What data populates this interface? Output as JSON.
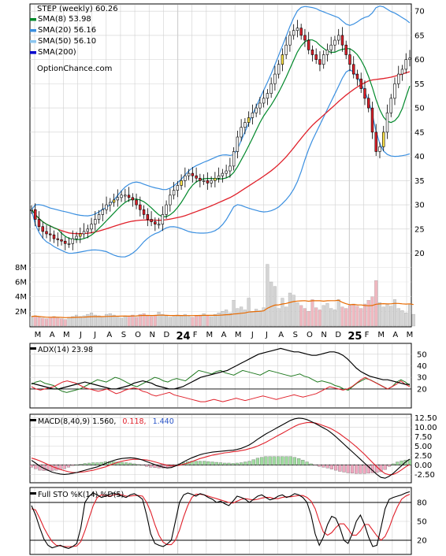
{
  "chart_data": {
    "type": "line",
    "symbol": "STEP",
    "period_label": "(weekly)",
    "last_price": "60.26",
    "watermark": "OptionChance.com",
    "colors": {
      "price_up": "#ffffff",
      "price_down": "#e0202a",
      "price_yellow": "#ffe54a",
      "sma8": "#00882a",
      "sma20": "#3a8fe0",
      "sma50": "#8cc6f0",
      "sma200": "#0000cc",
      "sma_long_line": "#e0202a",
      "bands": "#3a8fe0",
      "vol_bar": "#d4d4d4",
      "vol_bar_down": "#f0b8c0",
      "vol_ma": "#e86a00",
      "adx": "#000000",
      "plus_di": "#207a20",
      "minus_di": "#e0202a",
      "macd": "#000000",
      "signal": "#e0202a",
      "hist_pos": "#9fdc9f",
      "hist_neg": "#f0a8c0",
      "stoch_k": "#000000",
      "stoch_d": "#e0202a",
      "grid": "#d0d0d0",
      "frame": "#000000"
    },
    "legend": [
      {
        "key": "sma8",
        "label": "SMA(8) 53.98"
      },
      {
        "key": "sma20",
        "label": "SMA(20) 56.16"
      },
      {
        "key": "sma50",
        "label": "SMA(50) 56.10"
      },
      {
        "key": "sma200",
        "label": "SMA(200)"
      }
    ],
    "x_axis": {
      "months": [
        "M",
        "A",
        "M",
        "J",
        "J",
        "A",
        "S",
        "O",
        "N",
        "D",
        "24",
        "F",
        "M",
        "A",
        "M",
        "J",
        "J",
        "A",
        "S",
        "O",
        "N",
        "D",
        "25",
        "F",
        "M",
        "A",
        "M"
      ],
      "bold_labels": [
        "24",
        "25"
      ]
    },
    "price_panel": {
      "ylim": [
        17,
        71
      ],
      "y_ticks": [
        20,
        25,
        30,
        35,
        40,
        45,
        50,
        55,
        60,
        65,
        70
      ],
      "log_scale": false,
      "volume_ticks": [
        "2M",
        "4M",
        "6M",
        "8M"
      ],
      "volume_max_millions": 9,
      "weekly_close": [
        29,
        27,
        25.5,
        24.5,
        24,
        23.8,
        23,
        22.8,
        22.5,
        22,
        22,
        23,
        23.5,
        24,
        24.5,
        25,
        26,
        27,
        28,
        29,
        30,
        30.5,
        31,
        31.5,
        32,
        32,
        31.5,
        31,
        30,
        29,
        28,
        27,
        26.5,
        26,
        26,
        28,
        30,
        32,
        33,
        34,
        35,
        36,
        36.5,
        36,
        35.5,
        35,
        35,
        34.5,
        35,
        35.5,
        36,
        36.5,
        37,
        38,
        41,
        44,
        46,
        47,
        48,
        49,
        50,
        51,
        52,
        53,
        55,
        57,
        59,
        61,
        63,
        65,
        66,
        66.5,
        65,
        64,
        62,
        61,
        60,
        59,
        61,
        62,
        63,
        64,
        65,
        63,
        61,
        59,
        57,
        56,
        54,
        52,
        50,
        45,
        41,
        42,
        45,
        49,
        52,
        55,
        57,
        58,
        60,
        60.3
      ],
      "weekly_volume_millions": [
        1.3,
        1.4,
        1.2,
        1.1,
        1.0,
        1.2,
        1.3,
        1.1,
        1.0,
        0.9,
        1.2,
        1.3,
        1.5,
        1.3,
        1.4,
        1.6,
        1.8,
        1.5,
        1.4,
        1.3,
        1.6,
        1.7,
        1.5,
        1.2,
        1.1,
        1.4,
        1.3,
        1.5,
        1.2,
        1.6,
        1.7,
        1.4,
        1.3,
        1.5,
        1.9,
        1.6,
        1.4,
        1.2,
        1.3,
        1.5,
        1.4,
        1.6,
        1.3,
        1.2,
        1.4,
        1.5,
        1.7,
        1.4,
        1.3,
        1.6,
        1.8,
        2.0,
        2.2,
        1.8,
        3.5,
        2.4,
        2.6,
        2.2,
        3.8,
        2.0,
        2.3,
        2.1,
        2.5,
        8.4,
        6.0,
        5.4,
        2.4,
        3.8,
        2.6,
        4.5,
        4.2,
        3.2,
        2.8,
        2.4,
        2.0,
        3.6,
        2.5,
        2.2,
        2.8,
        3.1,
        2.4,
        2.2,
        3.6,
        2.6,
        2.4,
        2.8,
        3.0,
        2.7,
        2.4,
        3.0,
        3.5,
        4.0,
        6.2,
        3.2,
        2.6,
        3.0,
        2.7,
        3.6,
        2.4,
        2.1,
        1.8,
        2.9,
        1.6
      ]
    },
    "adx_panel": {
      "label": "ADX(14) 23.98",
      "ylim": [
        5,
        58
      ],
      "y_ticks": [
        20,
        30,
        40,
        50
      ],
      "adx": [
        25,
        24,
        23,
        22,
        21,
        20,
        20,
        21,
        22,
        23,
        24,
        25,
        26,
        25,
        24,
        23,
        22,
        21,
        20,
        20,
        21,
        22,
        23,
        25,
        26,
        27,
        26,
        25,
        23,
        22,
        21,
        20,
        20,
        21,
        22,
        24,
        26,
        28,
        30,
        31,
        32,
        33,
        34,
        35,
        36,
        38,
        40,
        42,
        44,
        46,
        48,
        50,
        51,
        52,
        53,
        54,
        55,
        54,
        53,
        52,
        52,
        51,
        50,
        49,
        49,
        50,
        51,
        52,
        52,
        51,
        49,
        46,
        42,
        38,
        35,
        33,
        31,
        30,
        29,
        28,
        28,
        27,
        26,
        25,
        24,
        24
      ],
      "plus_di": [
        24,
        26,
        27,
        25,
        24,
        23,
        20,
        18,
        17,
        18,
        19,
        20,
        22,
        24,
        26,
        28,
        27,
        26,
        28,
        30,
        29,
        27,
        25,
        23,
        22,
        24,
        26,
        28,
        30,
        29,
        27,
        26,
        28,
        29,
        28,
        27,
        30,
        33,
        36,
        35,
        34,
        33,
        35,
        36,
        34,
        33,
        32,
        34,
        36,
        35,
        34,
        33,
        32,
        34,
        36,
        35,
        34,
        33,
        32,
        31,
        32,
        33,
        31,
        30,
        28,
        26,
        27,
        26,
        25,
        23,
        22,
        20,
        19,
        22,
        25,
        27,
        29,
        28,
        26,
        24,
        22,
        20,
        22,
        26,
        28,
        26,
        23
      ],
      "minus_di": [
        22,
        20,
        19,
        20,
        21,
        22,
        24,
        26,
        27,
        26,
        25,
        23,
        21,
        20,
        19,
        18,
        19,
        20,
        18,
        16,
        17,
        19,
        20,
        21,
        20,
        18,
        17,
        15,
        14,
        15,
        16,
        17,
        15,
        14,
        13,
        12,
        11,
        10,
        9,
        9,
        10,
        11,
        10,
        9,
        10,
        11,
        12,
        11,
        10,
        11,
        12,
        13,
        14,
        13,
        12,
        11,
        12,
        13,
        14,
        15,
        14,
        13,
        14,
        15,
        16,
        18,
        20,
        22,
        21,
        20,
        19,
        20,
        22,
        25,
        28,
        30,
        28,
        26,
        24,
        22,
        20,
        22,
        24,
        27,
        24,
        22
      ]
    },
    "macd_panel": {
      "label_main": "MACD(8,40,9) 1.560,",
      "label_signal": "0.118,",
      "label_hist": "1.440",
      "ylim": [
        -4.3,
        13
      ],
      "y_ticks": [
        -2.5,
        0.0,
        2.5,
        5.0,
        7.5,
        10.0,
        12.5
      ],
      "y_tick_labels": [
        "-2.50",
        "0.00",
        "2.50",
        "5.00",
        "7.50",
        "10.00",
        "12.50"
      ],
      "macd": [
        1.2,
        0.5,
        -0.3,
        -0.9,
        -1.4,
        -1.9,
        -2.2,
        -2.4,
        -2.5,
        -2.4,
        -2.2,
        -2.0,
        -1.7,
        -1.4,
        -1.1,
        -0.8,
        -0.5,
        -0.1,
        0.4,
        0.8,
        1.2,
        1.5,
        1.7,
        1.8,
        1.9,
        1.8,
        1.6,
        1.3,
        0.9,
        0.5,
        0.1,
        -0.3,
        -0.6,
        -0.8,
        -0.7,
        -0.3,
        0.2,
        0.8,
        1.4,
        1.9,
        2.3,
        2.7,
        3.0,
        3.2,
        3.4,
        3.5,
        3.6,
        3.7,
        3.8,
        3.9,
        4.1,
        4.4,
        4.8,
        5.3,
        6.0,
        6.8,
        7.5,
        8.2,
        8.8,
        9.4,
        10.0,
        10.6,
        11.2,
        11.8,
        12.2,
        12.4,
        12.3,
        12.0,
        11.5,
        11.0,
        10.4,
        9.8,
        9.2,
        8.4,
        7.5,
        6.5,
        5.5,
        4.5,
        3.5,
        2.5,
        1.5,
        0.5,
        -0.5,
        -1.5,
        -2.5,
        -3.3,
        -3.5,
        -3.0,
        -2.2,
        -1.2,
        -0.2,
        0.8,
        1.56
      ],
      "signal": [
        1.8,
        1.5,
        1.1,
        0.6,
        0.1,
        -0.4,
        -0.8,
        -1.2,
        -1.5,
        -1.8,
        -2.0,
        -2.0,
        -1.9,
        -1.8,
        -1.6,
        -1.4,
        -1.1,
        -0.8,
        -0.5,
        -0.1,
        0.3,
        0.7,
        1.0,
        1.2,
        1.4,
        1.5,
        1.5,
        1.4,
        1.3,
        1.1,
        0.8,
        0.5,
        0.2,
        -0.1,
        -0.2,
        -0.2,
        -0.1,
        0.2,
        0.5,
        0.9,
        1.3,
        1.7,
        2.0,
        2.3,
        2.6,
        2.8,
        3.0,
        3.2,
        3.3,
        3.5,
        3.6,
        3.8,
        4.0,
        4.3,
        4.6,
        5.0,
        5.5,
        6.0,
        6.6,
        7.2,
        7.8,
        8.4,
        9.0,
        9.6,
        10.2,
        10.7,
        11.0,
        11.2,
        11.2,
        11.1,
        10.8,
        10.4,
        10.0,
        9.5,
        8.9,
        8.2,
        7.4,
        6.6,
        5.7,
        4.8,
        3.8,
        2.8,
        1.7,
        0.6,
        -0.5,
        -1.5,
        -2.3,
        -2.6,
        -2.5,
        -2.0,
        -1.3,
        -0.5,
        0.118
      ],
      "hist": [
        -0.6,
        -1.0,
        -1.4,
        -1.5,
        -1.5,
        -1.5,
        -1.4,
        -1.2,
        -1.0,
        -0.6,
        -0.2,
        0.0,
        0.2,
        0.4,
        0.5,
        0.6,
        0.6,
        0.7,
        0.9,
        0.9,
        0.9,
        0.8,
        0.7,
        0.6,
        0.5,
        0.3,
        0.1,
        -0.1,
        -0.4,
        -0.6,
        -0.7,
        -0.8,
        -0.8,
        -0.7,
        -0.5,
        -0.1,
        0.3,
        0.6,
        0.9,
        1.0,
        1.0,
        1.0,
        1.0,
        0.9,
        0.8,
        0.7,
        0.6,
        0.5,
        0.5,
        0.4,
        0.5,
        0.6,
        0.8,
        1.0,
        1.4,
        1.8,
        2.0,
        2.2,
        2.2,
        2.2,
        2.2,
        2.2,
        2.2,
        2.2,
        2.0,
        1.7,
        1.3,
        0.8,
        0.3,
        -0.1,
        -0.4,
        -0.6,
        -0.8,
        -1.1,
        -1.4,
        -1.7,
        -1.9,
        -2.1,
        -2.2,
        -2.3,
        -2.3,
        -2.3,
        -2.2,
        -2.1,
        -2.0,
        -1.8,
        -1.2,
        -0.4,
        0.3,
        0.8,
        1.1,
        1.3,
        1.44
      ]
    },
    "stoch_panel": {
      "label": "Full STO %K(14) %D(5)",
      "ylim": [
        0,
        100
      ],
      "y_ticks": [
        20,
        50,
        80
      ],
      "k": [
        75,
        60,
        40,
        22,
        12,
        8,
        10,
        12,
        9,
        7,
        10,
        15,
        40,
        80,
        90,
        95,
        92,
        88,
        90,
        93,
        95,
        92,
        90,
        88,
        92,
        94,
        90,
        85,
        60,
        30,
        15,
        12,
        10,
        14,
        20,
        50,
        80,
        92,
        95,
        93,
        90,
        94,
        92,
        88,
        85,
        80,
        82,
        78,
        75,
        82,
        90,
        88,
        85,
        80,
        85,
        90,
        92,
        88,
        84,
        86,
        90,
        92,
        88,
        90,
        94,
        92,
        88,
        80,
        60,
        30,
        12,
        25,
        45,
        58,
        55,
        40,
        20,
        15,
        30,
        50,
        60,
        45,
        25,
        10,
        12,
        40,
        70,
        85,
        88,
        90,
        92,
        95,
        97
      ],
      "d": [
        70,
        68,
        55,
        40,
        28,
        18,
        12,
        11,
        10,
        10,
        10,
        11,
        18,
        35,
        55,
        75,
        88,
        92,
        91,
        90,
        92,
        93,
        92,
        90,
        90,
        91,
        91,
        90,
        80,
        65,
        45,
        28,
        17,
        13,
        13,
        20,
        36,
        57,
        75,
        88,
        93,
        93,
        92,
        90,
        88,
        86,
        84,
        82,
        80,
        79,
        82,
        85,
        86,
        85,
        84,
        85,
        87,
        88,
        88,
        86,
        86,
        88,
        89,
        89,
        90,
        91,
        91,
        88,
        82,
        70,
        50,
        33,
        28,
        32,
        40,
        46,
        46,
        38,
        28,
        28,
        35,
        45,
        45,
        36,
        27,
        20,
        26,
        40,
        58,
        73,
        85,
        90,
        93
      ]
    }
  }
}
